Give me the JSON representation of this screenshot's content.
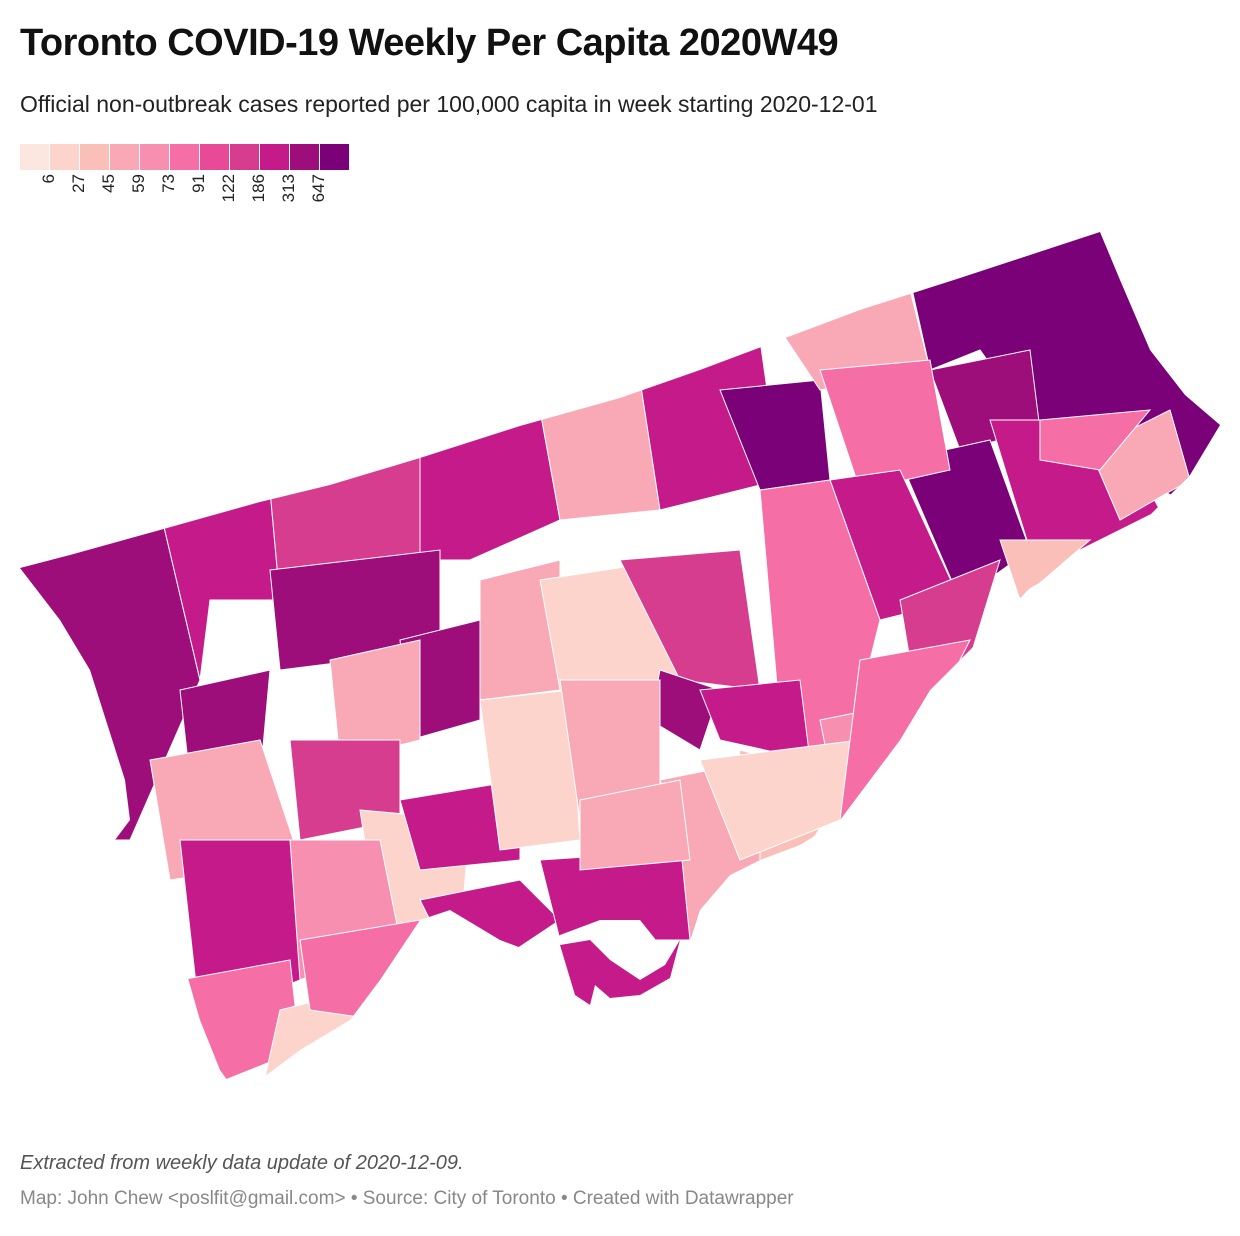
{
  "header": {
    "title": "Toronto COVID-19 Weekly Per Capita 2020W49",
    "subtitle": "Official non-outbreak cases reported per 100,000 capita in week starting 2020-12-01"
  },
  "legend": {
    "colors": [
      "#fde6e0",
      "#fcd4cc",
      "#fbbfb9",
      "#f9a9b5",
      "#f78fb0",
      "#f56fa6",
      "#e84a98",
      "#d63d8e",
      "#c51b8a",
      "#9e0e7a",
      "#7a0177"
    ],
    "ticks": [
      "6",
      "27",
      "45",
      "59",
      "73",
      "91",
      "122",
      "186",
      "313",
      "647"
    ]
  },
  "footer": {
    "note": "Extracted from weekly data update of 2020-12-09.",
    "credit": "Map: John Chew <poslfit@gmail.com> • Source: City of Toronto • Created with Datawrapper"
  }
}
